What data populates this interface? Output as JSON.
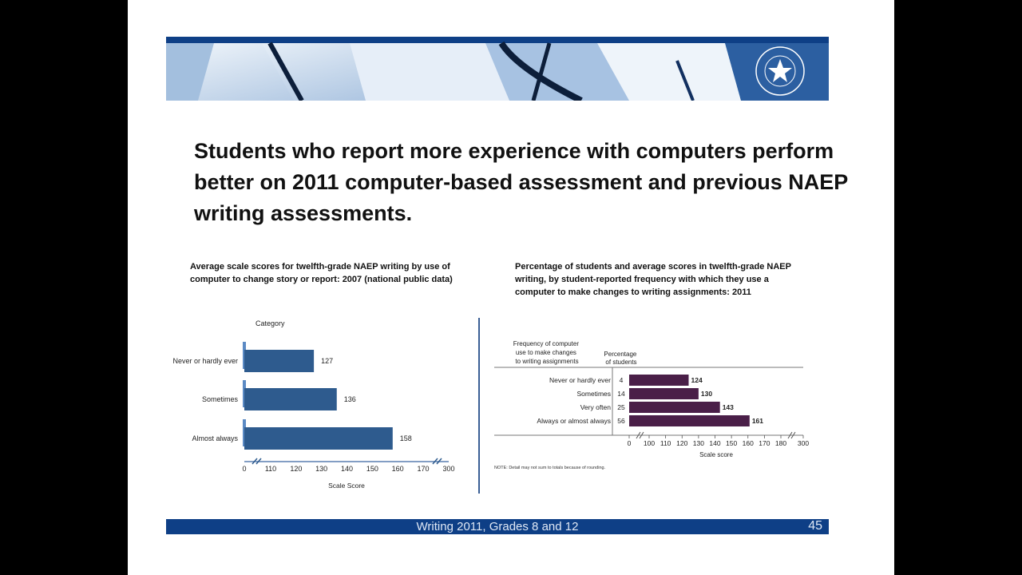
{
  "slide": {
    "headline": "Students who report more experience with computers perform better on 2011 computer-based assessment and previous NAEP writing assessments.",
    "footer": "Writing 2011, Grades 8 and 12",
    "page_number": "45",
    "accent_color": "#0e3f86"
  },
  "banner": {
    "seal_icon": "national-assessment-governing-board-seal",
    "seal_text": "NATIONAL ASSESSMENT GOVERNING BOARD"
  },
  "chart_data": [
    {
      "type": "bar",
      "orientation": "horizontal",
      "title": "Average scale scores for twelfth-grade NAEP writing by use of computer to change story or report: 2007 (national public data)",
      "category_header": "Category",
      "categories": [
        "Never or hardly ever",
        "Sometimes",
        "Almost always"
      ],
      "values": [
        127,
        136,
        158
      ],
      "xlabel": "Scale Score",
      "xticks": [
        "0",
        "110",
        "120",
        "130",
        "140",
        "150",
        "160",
        "170",
        "300"
      ],
      "axis_breaks": true,
      "bar_color": "#2e5b8e"
    },
    {
      "type": "bar",
      "orientation": "horizontal",
      "title": "Percentage of students and average scores in twelfth-grade NAEP writing, by student-reported frequency with which they use a computer to make changes to writing assignments: 2011",
      "category_header": "Frequency of computer use to make changes to writing assignments",
      "percent_header": "Percentage of students",
      "categories": [
        "Never or hardly ever",
        "Sometimes",
        "Very often",
        "Always or almost always"
      ],
      "percentages": [
        "4",
        "14",
        "25",
        "56"
      ],
      "values": [
        124,
        130,
        143,
        161
      ],
      "xlabel": "Scale score",
      "xticks": [
        "0",
        "100",
        "110",
        "120",
        "130",
        "140",
        "150",
        "160",
        "170",
        "180",
        "300"
      ],
      "axis_breaks": true,
      "note": "NOTE: Detail may not sum to totals because of rounding.",
      "bar_color": "#4a1f48"
    }
  ]
}
